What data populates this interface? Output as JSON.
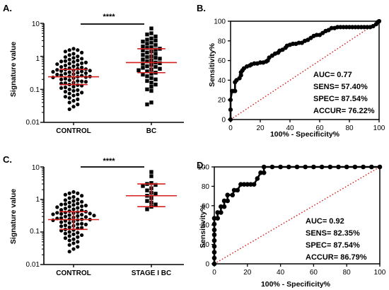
{
  "chart_data": [
    {
      "panel": "A.",
      "type": "scatter",
      "ylabel": "Signature value",
      "yscale": "log",
      "ylim": [
        0.01,
        10
      ],
      "yticks": [
        "0.01",
        "0.1",
        "1",
        "10"
      ],
      "categories": [
        "CONTROL",
        "BC"
      ],
      "significance": "****",
      "groups": [
        {
          "name": "CONTROL",
          "marker": "circle",
          "median": 0.24,
          "q1": 0.14,
          "q3": 0.4,
          "values": [
            1.7,
            1.55,
            1.55,
            1.4,
            1.3,
            1.2,
            1.1,
            1.0,
            0.95,
            0.9,
            0.85,
            0.8,
            0.75,
            0.72,
            0.7,
            0.68,
            0.65,
            0.62,
            0.6,
            0.58,
            0.55,
            0.53,
            0.5,
            0.48,
            0.46,
            0.44,
            0.42,
            0.41,
            0.4,
            0.39,
            0.38,
            0.37,
            0.36,
            0.35,
            0.34,
            0.33,
            0.32,
            0.31,
            0.3,
            0.29,
            0.28,
            0.27,
            0.26,
            0.25,
            0.245,
            0.24,
            0.235,
            0.23,
            0.22,
            0.21,
            0.2,
            0.19,
            0.18,
            0.175,
            0.17,
            0.16,
            0.155,
            0.15,
            0.14,
            0.135,
            0.13,
            0.12,
            0.115,
            0.11,
            0.1,
            0.095,
            0.09,
            0.085,
            0.08,
            0.075,
            0.07,
            0.065,
            0.06,
            0.055,
            0.05,
            0.045,
            0.04,
            0.035,
            0.03,
            0.025
          ]
        },
        {
          "name": "BC",
          "marker": "square",
          "median": 0.65,
          "q1": 0.32,
          "q3": 1.7,
          "values": [
            7.0,
            5.0,
            4.6,
            4.0,
            3.5,
            3.2,
            3.0,
            2.8,
            2.6,
            2.4,
            2.2,
            2.0,
            1.9,
            1.8,
            1.7,
            1.6,
            1.5,
            1.4,
            1.3,
            1.2,
            1.1,
            1.0,
            0.95,
            0.9,
            0.85,
            0.8,
            0.75,
            0.7,
            0.65,
            0.62,
            0.6,
            0.55,
            0.5,
            0.48,
            0.45,
            0.42,
            0.4,
            0.38,
            0.35,
            0.32,
            0.3,
            0.28,
            0.25,
            0.22,
            0.2,
            0.18,
            0.16,
            0.14,
            0.12,
            0.1,
            0.09,
            0.04,
            0.035
          ]
        }
      ]
    },
    {
      "panel": "B.",
      "type": "line",
      "xlabel": "100% - Specificity%",
      "ylabel": "Sensitivity%",
      "xlim": [
        0,
        100
      ],
      "ylim": [
        0,
        100
      ],
      "xticks": [
        "0",
        "20",
        "40",
        "60",
        "80",
        "100"
      ],
      "yticks": [
        "0",
        "20",
        "40",
        "60",
        "80",
        "100"
      ],
      "stats": [
        "AUC= 0.77",
        "SENS= 57.40%",
        "SPEC= 87.54%",
        "ACCUR= 76.22%"
      ],
      "roc": [
        [
          0,
          0
        ],
        [
          0,
          10
        ],
        [
          0,
          20
        ],
        [
          1,
          29
        ],
        [
          2,
          29
        ],
        [
          3,
          29
        ],
        [
          3,
          38
        ],
        [
          4,
          40
        ],
        [
          6,
          42
        ],
        [
          7,
          45
        ],
        [
          7,
          48
        ],
        [
          8,
          50
        ],
        [
          9,
          52
        ],
        [
          11,
          54
        ],
        [
          13,
          55
        ],
        [
          14,
          56
        ],
        [
          16,
          57
        ],
        [
          18,
          57
        ],
        [
          20,
          58
        ],
        [
          22,
          58
        ],
        [
          24,
          59
        ],
        [
          25,
          60
        ],
        [
          26,
          63
        ],
        [
          28,
          65
        ],
        [
          30,
          67
        ],
        [
          32,
          68
        ],
        [
          33,
          70
        ],
        [
          35,
          71
        ],
        [
          37,
          73
        ],
        [
          38,
          75
        ],
        [
          40,
          76
        ],
        [
          42,
          77
        ],
        [
          44,
          77
        ],
        [
          46,
          78
        ],
        [
          48,
          78
        ],
        [
          50,
          80
        ],
        [
          52,
          81
        ],
        [
          54,
          83
        ],
        [
          56,
          85
        ],
        [
          58,
          86
        ],
        [
          60,
          86
        ],
        [
          62,
          88
        ],
        [
          64,
          90
        ],
        [
          66,
          91
        ],
        [
          68,
          93
        ],
        [
          70,
          93
        ],
        [
          72,
          94
        ],
        [
          74,
          94
        ],
        [
          76,
          94
        ],
        [
          78,
          94
        ],
        [
          80,
          94
        ],
        [
          82,
          94
        ],
        [
          84,
          94
        ],
        [
          86,
          94
        ],
        [
          88,
          94
        ],
        [
          90,
          94
        ],
        [
          92,
          94
        ],
        [
          94,
          94
        ],
        [
          96,
          95
        ],
        [
          98,
          97
        ],
        [
          99,
          99
        ],
        [
          100,
          100
        ]
      ]
    },
    {
      "panel": "C.",
      "type": "scatter",
      "ylabel": "Signature value",
      "yscale": "log",
      "ylim": [
        0.01,
        10
      ],
      "yticks": [
        "0.01",
        "0.1",
        "1",
        "10"
      ],
      "categories": [
        "CONTROL",
        "STAGE I BC"
      ],
      "significance": "****",
      "groups": [
        {
          "name": "CONTROL",
          "marker": "circle",
          "median": 0.24,
          "q1": 0.12,
          "q3": 0.42,
          "values": [
            1.7,
            1.55,
            1.55,
            1.4,
            1.3,
            1.2,
            1.1,
            1.0,
            0.95,
            0.9,
            0.85,
            0.8,
            0.75,
            0.72,
            0.7,
            0.68,
            0.65,
            0.62,
            0.6,
            0.58,
            0.55,
            0.53,
            0.5,
            0.48,
            0.46,
            0.44,
            0.42,
            0.41,
            0.4,
            0.39,
            0.38,
            0.37,
            0.36,
            0.35,
            0.34,
            0.33,
            0.32,
            0.31,
            0.3,
            0.29,
            0.28,
            0.27,
            0.26,
            0.25,
            0.245,
            0.24,
            0.235,
            0.23,
            0.22,
            0.21,
            0.2,
            0.19,
            0.18,
            0.175,
            0.17,
            0.16,
            0.155,
            0.15,
            0.14,
            0.135,
            0.13,
            0.12,
            0.115,
            0.11,
            0.1,
            0.095,
            0.09,
            0.085,
            0.08,
            0.075,
            0.07,
            0.065,
            0.06,
            0.055,
            0.05,
            0.045,
            0.04,
            0.035,
            0.03,
            0.025
          ]
        },
        {
          "name": "STAGE I BC",
          "marker": "square",
          "median": 1.3,
          "q1": 0.6,
          "q3": 3.0,
          "values": [
            7.0,
            5.2,
            3.2,
            3.0,
            2.8,
            2.6,
            2.2,
            1.9,
            1.6,
            1.5,
            1.3,
            1.1,
            0.9,
            0.8,
            0.7,
            0.6,
            0.5
          ]
        }
      ]
    },
    {
      "panel": "D.",
      "type": "line",
      "xlabel": "100% - Specificity%",
      "ylabel": "Sensitivity%",
      "xlim": [
        0,
        100
      ],
      "ylim": [
        0,
        100
      ],
      "xticks": [
        "0",
        "20",
        "40",
        "60",
        "80",
        "100"
      ],
      "yticks": [
        "0",
        "20",
        "40",
        "60",
        "80",
        "100"
      ],
      "stats": [
        "AUC= 0.92",
        "SENS= 82.35%",
        "SPEC= 87.54%",
        "ACCUR= 86.79%"
      ],
      "roc": [
        [
          0,
          0
        ],
        [
          0,
          6
        ],
        [
          0,
          12
        ],
        [
          0,
          18
        ],
        [
          0,
          24
        ],
        [
          0,
          30
        ],
        [
          0,
          35
        ],
        [
          0,
          41
        ],
        [
          0,
          47
        ],
        [
          2,
          47
        ],
        [
          2,
          53
        ],
        [
          4,
          53
        ],
        [
          4,
          59
        ],
        [
          6,
          59
        ],
        [
          6,
          65
        ],
        [
          8,
          65
        ],
        [
          8,
          71
        ],
        [
          11,
          71
        ],
        [
          12,
          76
        ],
        [
          14,
          76
        ],
        [
          16,
          82
        ],
        [
          18,
          82
        ],
        [
          20,
          82
        ],
        [
          22,
          82
        ],
        [
          24,
          82
        ],
        [
          26,
          88
        ],
        [
          28,
          94
        ],
        [
          30,
          94
        ],
        [
          30,
          100
        ],
        [
          35,
          100
        ],
        [
          40,
          100
        ],
        [
          45,
          100
        ],
        [
          50,
          100
        ],
        [
          55,
          100
        ],
        [
          60,
          100
        ],
        [
          65,
          100
        ],
        [
          70,
          100
        ],
        [
          75,
          100
        ],
        [
          80,
          100
        ],
        [
          85,
          100
        ],
        [
          90,
          100
        ],
        [
          95,
          100
        ],
        [
          100,
          100
        ]
      ]
    }
  ]
}
